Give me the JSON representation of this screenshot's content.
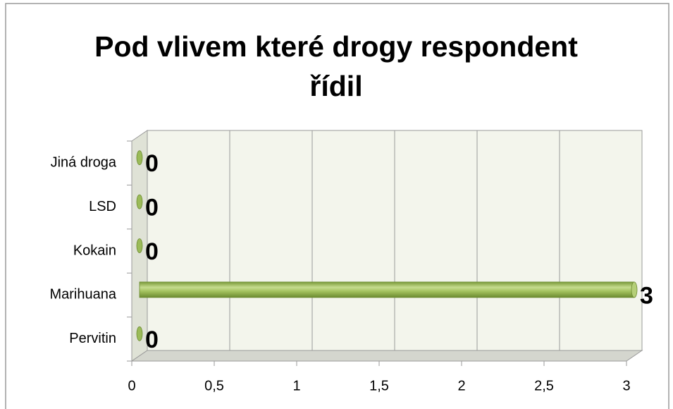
{
  "chart_data": {
    "type": "bar",
    "orientation": "horizontal",
    "title": "Pod vlivem které drogy respondent řídil",
    "categories": [
      "Pervitin",
      "Marihuana",
      "Kokain",
      "LSD",
      "Jiná droga"
    ],
    "values": [
      0,
      3,
      0,
      0,
      0
    ],
    "color": "#9bbb59",
    "xlim": [
      0,
      3
    ],
    "xticks": [
      0,
      {
        "value": 0.5,
        "label": "0,5"
      },
      1,
      {
        "value": 1.5,
        "label": "1,5"
      },
      2,
      {
        "value": 2.5,
        "label": "2,5"
      },
      3
    ],
    "grid": true
  }
}
